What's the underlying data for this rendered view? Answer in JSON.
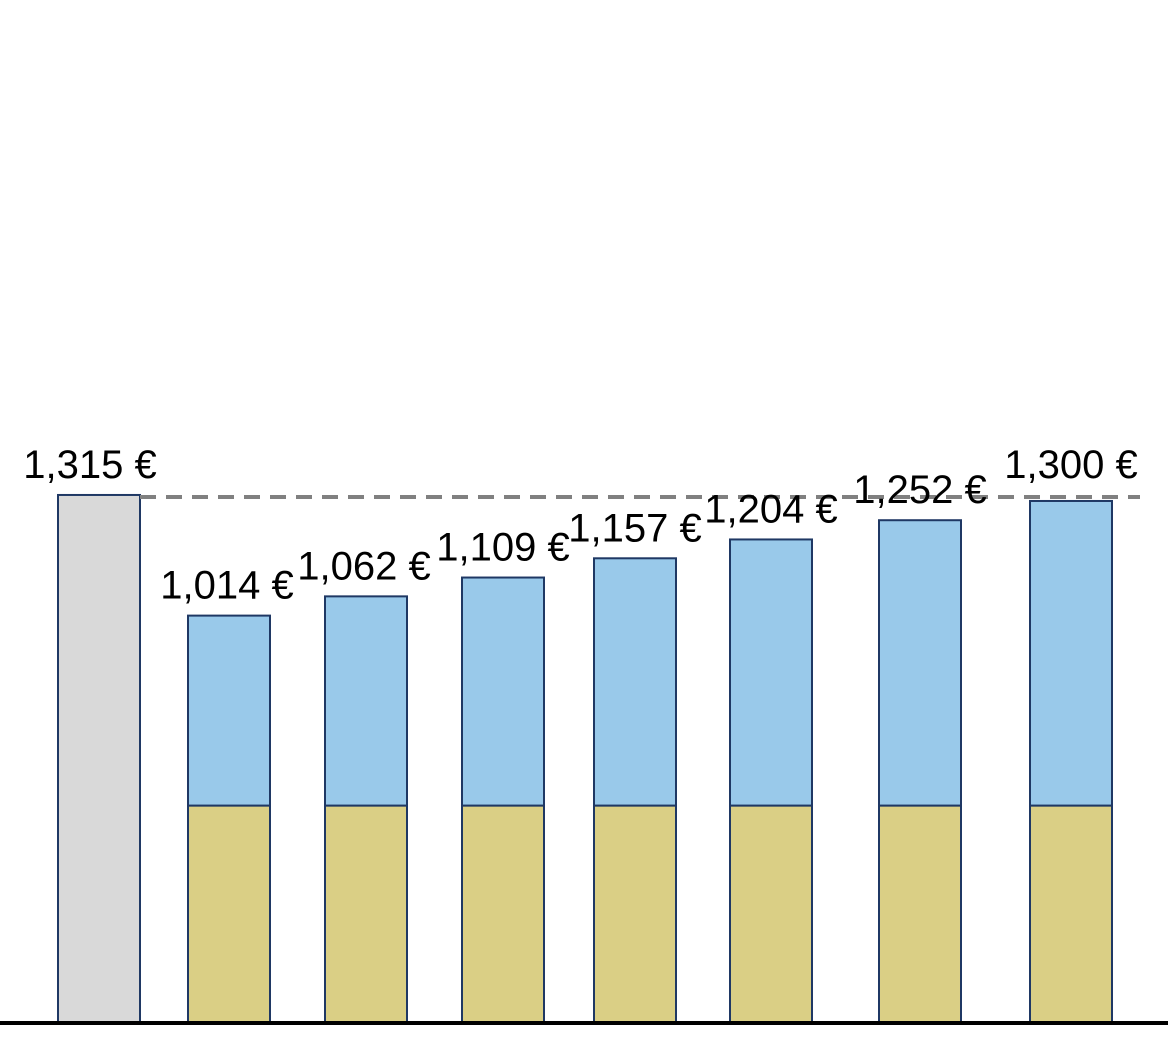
{
  "chart_data": {
    "type": "bar",
    "categories": [
      "",
      "",
      "",
      "",
      "",
      "",
      "",
      ""
    ],
    "values": [
      1315,
      1014,
      1062,
      1109,
      1157,
      1204,
      1252,
      1300
    ],
    "data_labels": [
      "1,315 €",
      "1,014 €",
      "1,062 €",
      "1,109 €",
      "1,157 €",
      "1,204 €",
      "1,252 €",
      "1,300 €"
    ],
    "series": [
      {
        "values": [
          1315,
          0,
          0,
          0,
          0,
          0,
          0,
          0
        ],
        "color": "#d9d9d9"
      },
      {
        "values": [
          0,
          540,
          540,
          540,
          540,
          540,
          540,
          540
        ],
        "color": "#dacf85"
      },
      {
        "values": [
          0,
          474,
          522,
          569,
          617,
          664,
          712,
          760
        ],
        "color": "#99c9ea"
      }
    ],
    "reference_line": {
      "value": 1315,
      "style": "dashed",
      "color": "#808080"
    },
    "bar_outline_color": "#1f3864",
    "ylim": [
      0,
      2550
    ],
    "grid": false,
    "legend": "none",
    "title": "",
    "xlabel": "",
    "ylabel": ""
  }
}
